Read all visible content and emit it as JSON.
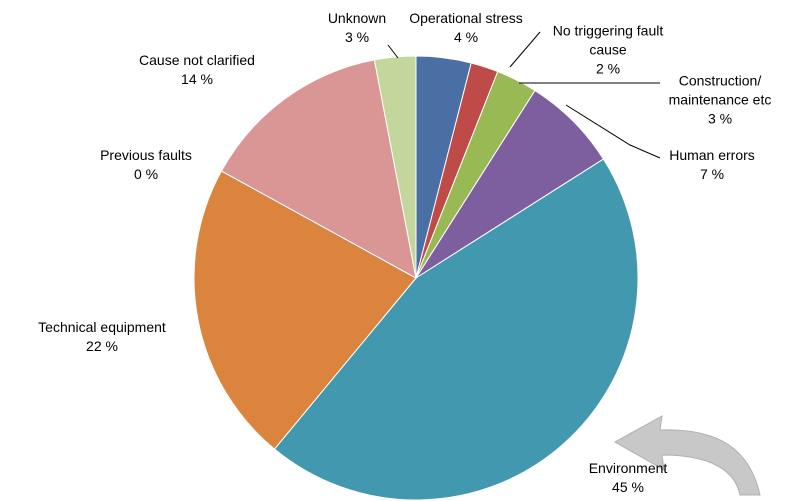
{
  "chart_data": {
    "type": "pie",
    "categories": [
      "Operational stress",
      "No triggering fault cause",
      "Construction/ maintenance etc",
      "Human errors",
      "Environment",
      "Technical equipment",
      "Previous faults",
      "Cause not clarified",
      "Unknown"
    ],
    "values": [
      4,
      2,
      3,
      7,
      45,
      22,
      0,
      14,
      3
    ],
    "value_labels": [
      "4 %",
      "2 %",
      "3 %",
      "7 %",
      "45 %",
      "22 %",
      "0 %",
      "14 %",
      "3 %"
    ],
    "colors": [
      "#4a6fa5",
      "#be4b48",
      "#98b954",
      "#7d5fa0",
      "#4298af",
      "#db843d",
      "#93a9cf",
      "#d99694",
      "#c3d69b"
    ]
  }
}
